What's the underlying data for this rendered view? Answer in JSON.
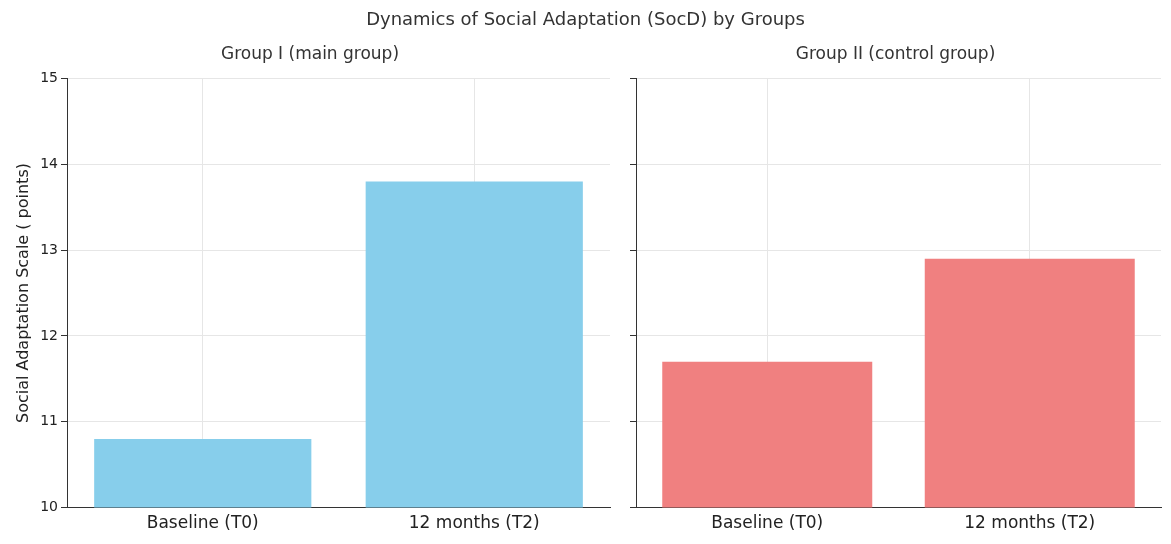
{
  "chart_data": [
    {
      "type": "bar",
      "title": "Group I (main group)",
      "annotations": [
        "Dynamics of Social Adaptation (SocD) by Groups"
      ],
      "ylabel": "Social Adaptation Scale ( points)",
      "categories": [
        "Baseline (T0)",
        "12 months (T2)"
      ],
      "series": [
        {
          "color": "#87ceeb",
          "values": [
            10.8,
            13.8
          ]
        }
      ],
      "ylim": [
        10,
        15
      ],
      "yticks": [
        10,
        11,
        12,
        13,
        14,
        15
      ],
      "grid": true
    },
    {
      "type": "bar",
      "title": "Group II (control group)",
      "categories": [
        "Baseline (T0)",
        "12 months (T2)"
      ],
      "series": [
        {
          "color": "#f08080",
          "values": [
            11.7,
            12.9
          ]
        }
      ],
      "ylim": [
        10,
        15
      ],
      "yticks": [
        10,
        11,
        12,
        13,
        14,
        15
      ],
      "grid": true,
      "tick_labels": "x"
    }
  ]
}
